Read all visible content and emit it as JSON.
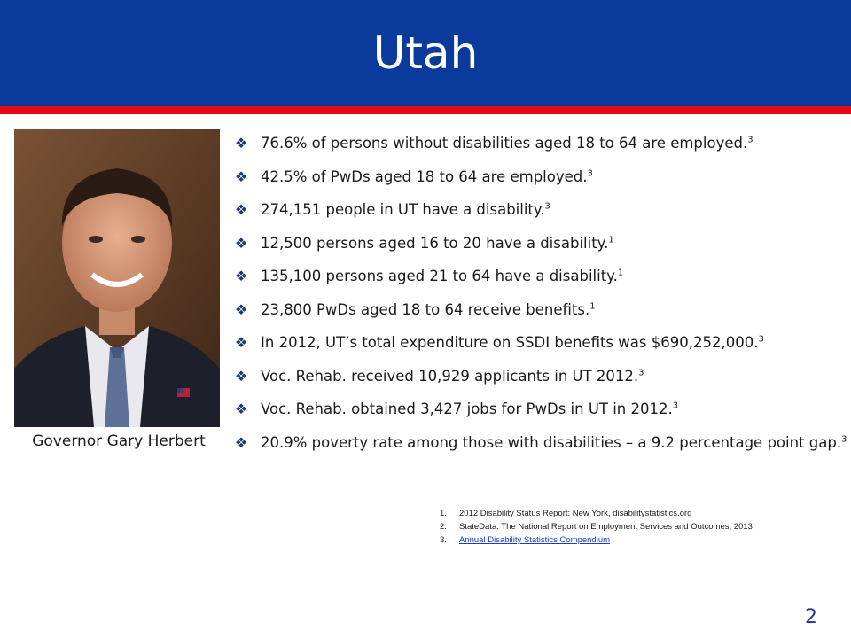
{
  "slide": {
    "title": "Utah",
    "photo_caption": "Governor Gary Herbert",
    "bullet_marker_icon": "diamond-bullet-icon",
    "bullets": [
      {
        "text": "76.6% of persons without disabilities aged 18 to 64 are employed.",
        "ref": "3"
      },
      {
        "text": "42.5% of PwDs aged 18 to 64 are employed.",
        "ref": "3"
      },
      {
        "text": "274,151 people in UT have a disability.",
        "ref": "3"
      },
      {
        "text": "12,500 persons aged 16 to 20 have a disability.",
        "ref": "1"
      },
      {
        "text": "135,100 persons aged 21 to 64 have a disability.",
        "ref": "1"
      },
      {
        "text": "23,800 PwDs aged 18 to 64 receive benefits.",
        "ref": "1"
      },
      {
        "text": "In 2012, UT’s total expenditure on SSDI benefits was $690,252,000.",
        "ref": "3"
      },
      {
        "text": "Voc. Rehab. received 10,929 applicants in UT 2012.",
        "ref": "3"
      },
      {
        "text": "Voc. Rehab. obtained 3,427 jobs for PwDs in UT in 2012.",
        "ref": "3"
      },
      {
        "text": "20.9% poverty rate among those with disabilities – a 9.2 percentage point gap.",
        "ref": "3"
      }
    ],
    "footnotes": [
      {
        "number": "1.",
        "text": "2012 Disability Status Report: New York, disabilitystatistics.org"
      },
      {
        "number": "2.",
        "text": "StateData: The National Report on Employment Services and Outcomes, 2013"
      },
      {
        "number": "3.",
        "text": "Annual Disability Statistics Compendium"
      }
    ],
    "page_number": "2"
  },
  "colors": {
    "title_bar": "#0a3a9c",
    "accent_bar": "#e50914",
    "bullet_marker": "#1f3a70",
    "link": "#1a3ad0"
  }
}
